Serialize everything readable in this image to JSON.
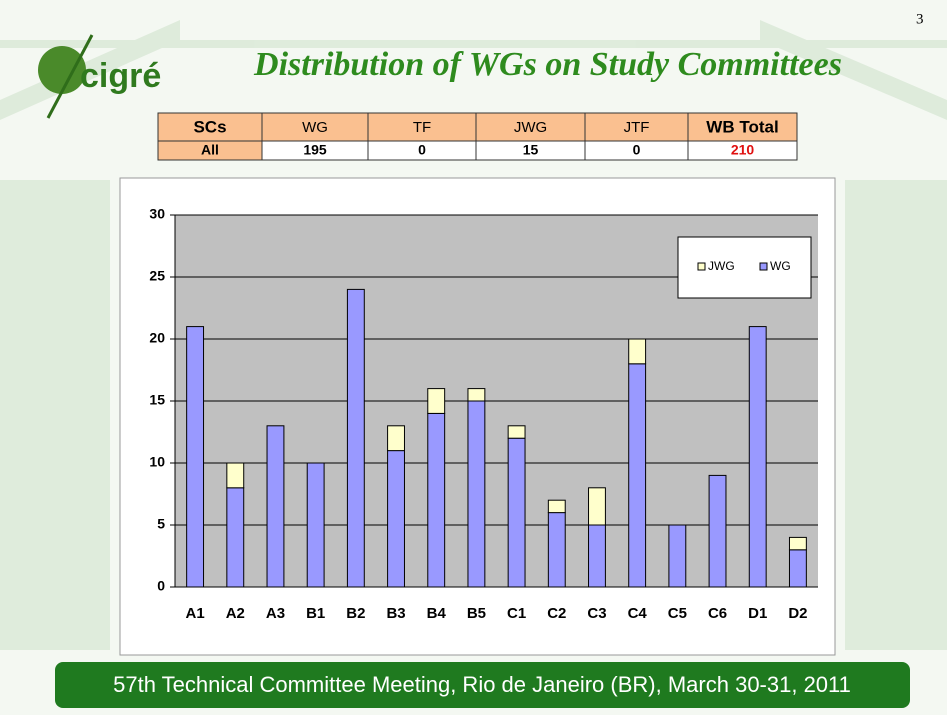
{
  "page_number": "3",
  "logo": "cigré",
  "header": {
    "title": "Distribution of WGs on Study Committees"
  },
  "table": {
    "columns": [
      "SCs",
      "WG",
      "TF",
      "JWG",
      "JTF",
      "WB Total"
    ],
    "rows": [
      [
        "All",
        195,
        0,
        15,
        0,
        210
      ]
    ]
  },
  "chart_data": {
    "type": "stacked_bar",
    "categories": [
      "A1",
      "A2",
      "A3",
      "B1",
      "B2",
      "B3",
      "B4",
      "B5",
      "C1",
      "C2",
      "C3",
      "C4",
      "C5",
      "C6",
      "D1",
      "D2"
    ],
    "series": [
      {
        "name": "WG",
        "color": "#9999ff",
        "values": [
          21,
          8,
          13,
          10,
          24,
          11,
          14,
          15,
          12,
          6,
          5,
          18,
          5,
          9,
          21,
          3
        ]
      },
      {
        "name": "JWG",
        "color": "#ffffcc",
        "values": [
          0,
          2,
          0,
          0,
          0,
          2,
          2,
          1,
          1,
          1,
          3,
          2,
          0,
          0,
          0,
          1
        ]
      }
    ],
    "ylim": [
      0,
      30
    ],
    "yticks": [
      0,
      5,
      10,
      15,
      20,
      25,
      30
    ],
    "grid": true,
    "plot_background": "#c0c0c0",
    "legend": "top-right"
  },
  "footer": "57th Technical Committee Meeting, Rio de Janeiro (BR), March 30-31, 2011"
}
